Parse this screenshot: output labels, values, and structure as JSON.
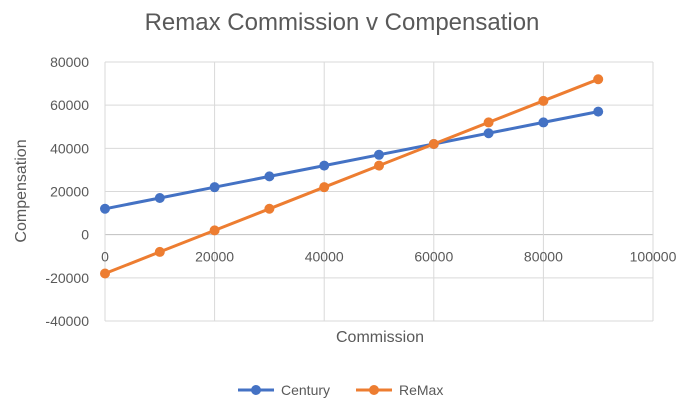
{
  "chart_data": {
    "type": "line",
    "title": "Remax Commission v Compensation",
    "xlabel": "Commission",
    "ylabel": "Compensation",
    "xlim": [
      0,
      100000
    ],
    "ylim": [
      -40000,
      80000
    ],
    "x_ticks": [
      "0",
      "20000",
      "40000",
      "60000",
      "80000",
      "100000"
    ],
    "y_ticks": [
      "80000",
      "60000",
      "40000",
      "20000",
      "0",
      "-20000",
      "-40000"
    ],
    "grid": true,
    "legend_position": "bottom",
    "series": [
      {
        "name": "Century",
        "color": "#4472C4",
        "x": [
          0,
          10000,
          20000,
          30000,
          40000,
          50000,
          60000,
          70000,
          80000,
          90000
        ],
        "y": [
          12000,
          17000,
          22000,
          27000,
          32000,
          37000,
          42000,
          47000,
          52000,
          57000
        ]
      },
      {
        "name": "ReMax",
        "color": "#ED7D31",
        "x": [
          0,
          10000,
          20000,
          30000,
          40000,
          50000,
          60000,
          70000,
          80000,
          90000
        ],
        "y": [
          -18000,
          -8000,
          2000,
          12000,
          22000,
          32000,
          42000,
          52000,
          62000,
          72000
        ]
      }
    ]
  }
}
